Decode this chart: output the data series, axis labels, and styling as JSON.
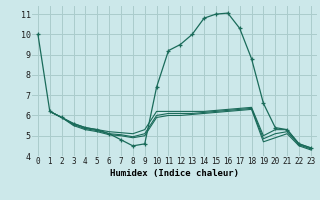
{
  "xlabel": "Humidex (Indice chaleur)",
  "bg_color": "#cce8ea",
  "grid_color": "#aacccc",
  "line_color": "#1a6b5a",
  "xlim": [
    -0.5,
    23.5
  ],
  "ylim": [
    4,
    11.4
  ],
  "yticks": [
    4,
    5,
    6,
    7,
    8,
    9,
    10,
    11
  ],
  "xticks": [
    0,
    1,
    2,
    3,
    4,
    5,
    6,
    7,
    8,
    9,
    10,
    11,
    12,
    13,
    14,
    15,
    16,
    17,
    18,
    19,
    20,
    21,
    22,
    23
  ],
  "lines": [
    {
      "x": [
        0,
        1,
        2,
        3,
        4,
        5,
        6,
        7,
        8,
        9,
        10,
        11,
        12,
        13,
        14,
        15,
        16,
        17,
        18,
        19,
        20,
        21,
        22,
        23
      ],
      "y": [
        10.0,
        6.2,
        5.9,
        5.6,
        5.4,
        5.3,
        5.1,
        4.8,
        4.5,
        4.6,
        7.4,
        9.2,
        9.5,
        10.0,
        10.8,
        11.0,
        11.05,
        10.3,
        8.8,
        6.6,
        5.4,
        5.3,
        4.6,
        4.4
      ],
      "marker": true
    },
    {
      "x": [
        1,
        2,
        3,
        4,
        5,
        6,
        7,
        8,
        9,
        10,
        11,
        12,
        13,
        14,
        15,
        16,
        17,
        18,
        19,
        20,
        21,
        22,
        23
      ],
      "y": [
        6.2,
        5.9,
        5.6,
        5.4,
        5.3,
        5.2,
        5.15,
        5.1,
        5.3,
        6.2,
        6.2,
        6.2,
        6.2,
        6.2,
        6.25,
        6.3,
        6.35,
        6.4,
        5.0,
        5.3,
        5.3,
        4.6,
        4.4
      ],
      "marker": false
    },
    {
      "x": [
        1,
        2,
        3,
        4,
        5,
        6,
        7,
        8,
        9,
        10,
        11,
        12,
        13,
        14,
        15,
        16,
        17,
        18,
        19,
        20,
        21,
        22,
        23
      ],
      "y": [
        6.2,
        5.9,
        5.55,
        5.35,
        5.25,
        5.1,
        5.05,
        4.95,
        5.1,
        6.0,
        6.1,
        6.1,
        6.1,
        6.15,
        6.2,
        6.25,
        6.3,
        6.35,
        4.85,
        5.1,
        5.2,
        4.55,
        4.35
      ],
      "marker": false
    },
    {
      "x": [
        1,
        2,
        3,
        4,
        5,
        6,
        7,
        8,
        9,
        10,
        11,
        12,
        13,
        14,
        15,
        16,
        17,
        18,
        19,
        20,
        21,
        22,
        23
      ],
      "y": [
        6.2,
        5.9,
        5.5,
        5.3,
        5.2,
        5.05,
        5.0,
        4.9,
        5.0,
        5.9,
        6.0,
        6.0,
        6.05,
        6.1,
        6.15,
        6.2,
        6.25,
        6.3,
        4.7,
        4.9,
        5.1,
        4.5,
        4.3
      ],
      "marker": false
    }
  ],
  "xlabel_fontsize": 6.5,
  "tick_fontsize": 5.5,
  "ytick_fontsize": 6.0
}
